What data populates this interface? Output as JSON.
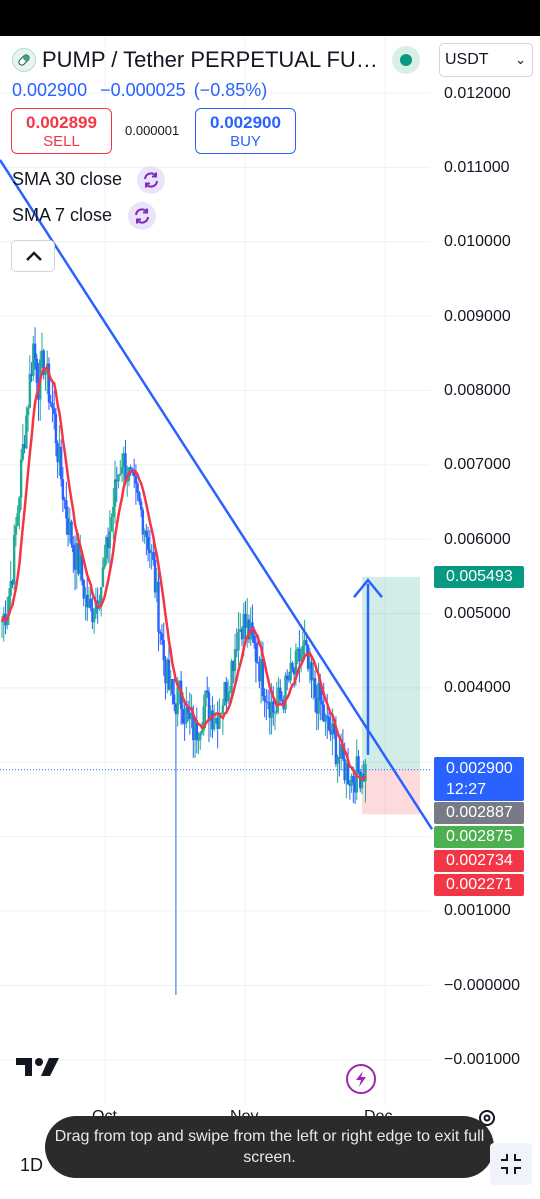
{
  "header": {
    "symbol_title": "PUMP / Tether PERPETUAL FUT...",
    "currency": "USDT",
    "currency_chevron": "chevron-down-icon",
    "status_color": "#089981"
  },
  "price": {
    "last": "0.002900",
    "change": "−0.000025",
    "change_pct": "(−0.85%)"
  },
  "trade": {
    "sell_price": "0.002899",
    "sell_label": "SELL",
    "spread": "0.000001",
    "buy_price": "0.002900",
    "buy_label": "BUY"
  },
  "indicators": [
    {
      "label": "SMA 30 close",
      "icon": "refresh-icon"
    },
    {
      "label": "SMA 7 close",
      "icon": "refresh-icon"
    }
  ],
  "price_axis": {
    "labels": [
      "0.012000",
      "0.011000",
      "0.010000",
      "0.009000",
      "0.008000",
      "0.007000",
      "0.006000",
      "0.005000",
      "0.004000",
      "0.001000",
      "−0.000000",
      "−0.001000"
    ]
  },
  "price_tags": {
    "target": "0.005493",
    "current": "0.002900",
    "countdown": "12:27",
    "sma30": "0.002887",
    "sma7": "0.002875",
    "stop1": "0.002734",
    "stop2": "0.002271"
  },
  "time_axis": {
    "labels": [
      "Oct",
      "Nov",
      "Dec"
    ]
  },
  "bottom": {
    "interval": "1D",
    "toast": "Drag from top and swipe from the left or right edge to exit full screen.",
    "fullscreen_icon": "exit-fullscreen-icon",
    "settings_icon": "gear-icon"
  },
  "colors": {
    "up": "#22ab94",
    "down": "#2962ff",
    "sma30": "#f23645",
    "trendline": "#2962ff",
    "target": "#089981",
    "stop": "#f23645",
    "sma_gray": "#787b86",
    "sma_green": "#4caf50"
  },
  "chart_data": {
    "type": "candlestick",
    "symbol": "PUMP / Tether PERPETUAL FUT...",
    "interval": "1D",
    "ylim": [
      -0.0013,
      0.0125
    ],
    "x_ticks": [
      "Oct",
      "Nov",
      "Dec"
    ],
    "close_series": [
      0.0049,
      0.0051,
      0.0056,
      0.0064,
      0.0072,
      0.0079,
      0.0086,
      0.0081,
      0.0084,
      0.008,
      0.0076,
      0.007,
      0.0065,
      0.0061,
      0.0058,
      0.0056,
      0.0052,
      0.005,
      0.0052,
      0.0054,
      0.0058,
      0.0063,
      0.0068,
      0.0071,
      0.0069,
      0.0067,
      0.0065,
      0.0063,
      0.006,
      0.0056,
      0.005,
      0.0044,
      0.004,
      0.0038,
      0.0039,
      0.0037,
      0.0035,
      0.0034,
      0.0036,
      0.0038,
      0.0037,
      0.0036,
      0.0038,
      0.004,
      0.0043,
      0.0047,
      0.0049,
      0.0048,
      0.0046,
      0.0044,
      0.0041,
      0.0039,
      0.0037,
      0.0038,
      0.0039,
      0.0041,
      0.0042,
      0.0044,
      0.0045,
      0.0041,
      0.0039,
      0.0038,
      0.0035,
      0.0034,
      0.0032,
      0.003,
      0.0029,
      0.0028,
      0.00285,
      0.0029
    ],
    "sma_series_name": "SMA 30 close",
    "trendline": {
      "from": 0.0089,
      "to": 0.0027
    },
    "position": {
      "target": 0.005493,
      "entry": 0.0029,
      "stop": 0.002271
    },
    "wick_low": -0.00013,
    "grid": true
  }
}
